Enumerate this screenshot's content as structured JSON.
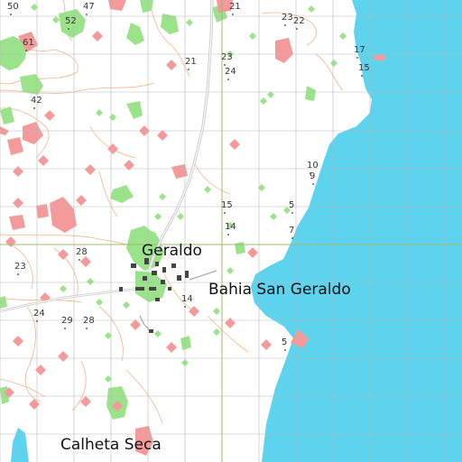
{
  "colors": {
    "background": "#ffffff",
    "sea": "#5ed3ee",
    "sea_grid": "#7fd8ec",
    "grid": "#b8b8b8",
    "grid_accent": "#9fb86a",
    "contour": "#f2b48a",
    "vegetation": "#9be38a",
    "red_patch": "#f59a9a",
    "road": "#c8c8c8",
    "buildings": "#444444"
  },
  "places": [
    {
      "id": "geraldo",
      "label": "Geraldo"
    },
    {
      "id": "bahia",
      "label": "Bahia San Geraldo"
    },
    {
      "id": "calheta",
      "label": "Calheta Seca"
    }
  ],
  "spot_heights": [
    "50",
    "47",
    "52",
    "61",
    "21",
    "23",
    "22",
    "17",
    "15",
    "21",
    "23",
    "24",
    "42",
    "10",
    "9",
    "15",
    "5",
    "14",
    "7",
    "28",
    "23",
    "14",
    "24",
    "29",
    "28",
    "5"
  ]
}
